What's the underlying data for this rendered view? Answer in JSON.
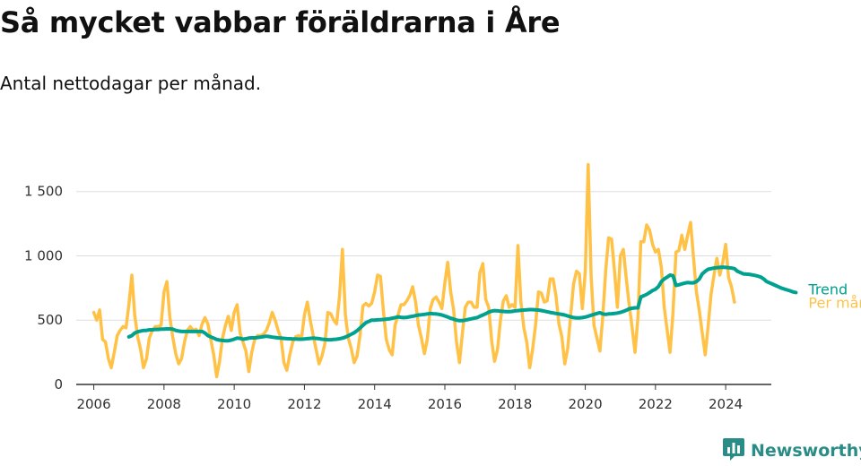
{
  "colors": {
    "monthly": "#FFC247",
    "trend": "#00A18E",
    "grid": "#DDDDDD",
    "brand": "#2A8C86"
  },
  "brand": {
    "name": "Newsworthy",
    "icon": "bar-chart-badge-icon"
  },
  "chart_data": {
    "type": "line",
    "title": "Så mycket vabbar föräldrarna i Åre",
    "subtitle": "Antal nettodagar per månad.",
    "xlabel": "",
    "ylabel": "",
    "xlim": [
      2005.5,
      2025.3
    ],
    "ylim": [
      0,
      1700
    ],
    "x_ticks": [
      2006,
      2008,
      2010,
      2012,
      2014,
      2016,
      2018,
      2020,
      2022,
      2024
    ],
    "x_tick_labels": [
      "2006",
      "2008",
      "2010",
      "2012",
      "2014",
      "2016",
      "2018",
      "2020",
      "2022",
      "2024"
    ],
    "y_ticks": [
      0,
      500,
      1000,
      1500
    ],
    "y_tick_labels": [
      "0",
      "500",
      "1 000",
      "1 500"
    ],
    "grid": true,
    "series": [
      {
        "name": "Per månad",
        "start_year": 2006,
        "start_month": 1,
        "values": [
          560,
          500,
          580,
          350,
          330,
          200,
          130,
          250,
          380,
          420,
          450,
          440,
          620,
          850,
          540,
          370,
          270,
          130,
          200,
          360,
          420,
          450,
          450,
          460,
          720,
          800,
          520,
          370,
          240,
          160,
          200,
          330,
          420,
          450,
          420,
          430,
          380,
          470,
          520,
          470,
          350,
          230,
          60,
          180,
          360,
          460,
          530,
          420,
          560,
          620,
          400,
          330,
          260,
          100,
          250,
          350,
          380,
          380,
          390,
          420,
          480,
          560,
          500,
          420,
          360,
          170,
          110,
          230,
          330,
          370,
          380,
          360,
          540,
          640,
          500,
          380,
          270,
          160,
          220,
          320,
          560,
          550,
          500,
          470,
          690,
          1050,
          540,
          360,
          280,
          170,
          220,
          380,
          610,
          630,
          610,
          630,
          720,
          850,
          840,
          570,
          350,
          270,
          230,
          460,
          540,
          620,
          620,
          650,
          690,
          760,
          640,
          460,
          360,
          240,
          350,
          590,
          660,
          680,
          640,
          590,
          790,
          950,
          720,
          580,
          330,
          170,
          400,
          600,
          640,
          640,
          600,
          600,
          870,
          940,
          660,
          600,
          340,
          180,
          270,
          500,
          650,
          690,
          600,
          620,
          600,
          1080,
          640,
          440,
          330,
          130,
          270,
          460,
          720,
          710,
          640,
          650,
          820,
          820,
          690,
          470,
          370,
          160,
          280,
          530,
          780,
          880,
          860,
          590,
          880,
          1710,
          840,
          460,
          360,
          260,
          530,
          890,
          1140,
          1130,
          880,
          600,
          1000,
          1050,
          830,
          620,
          450,
          250,
          520,
          1110,
          1110,
          1240,
          1200,
          1090,
          1030,
          1050,
          910,
          600,
          420,
          250,
          560,
          1030,
          1040,
          1160,
          1050,
          1160,
          1260,
          990,
          720,
          570,
          400,
          230,
          450,
          700,
          850,
          980,
          850,
          950,
          1090,
          830,
          760,
          640
        ],
        "label": "Per månad"
      },
      {
        "name": "Trend",
        "start_year": 2007,
        "start_month": 1,
        "values": [
          370,
          380,
          400,
          410,
          415,
          420,
          420,
          425,
          425,
          428,
          428,
          430,
          430,
          432,
          432,
          430,
          420,
          415,
          412,
          412,
          412,
          412,
          412,
          412,
          412,
          412,
          400,
          380,
          370,
          360,
          350,
          345,
          342,
          340,
          340,
          345,
          352,
          360,
          358,
          352,
          355,
          360,
          362,
          362,
          365,
          368,
          372,
          375,
          372,
          368,
          365,
          362,
          360,
          358,
          356,
          355,
          354,
          353,
          352,
          352,
          354,
          356,
          358,
          360,
          358,
          356,
          352,
          350,
          348,
          348,
          350,
          352,
          355,
          360,
          368,
          378,
          390,
          402,
          418,
          438,
          460,
          480,
          490,
          500,
          500,
          502,
          503,
          505,
          508,
          510,
          515,
          520,
          525,
          522,
          520,
          522,
          526,
          530,
          535,
          540,
          542,
          545,
          548,
          552,
          550,
          548,
          545,
          540,
          532,
          524,
          515,
          508,
          500,
          496,
          496,
          500,
          505,
          510,
          515,
          520,
          530,
          540,
          550,
          562,
          570,
          574,
          572,
          570,
          568,
          566,
          566,
          568,
          572,
          574,
          576,
          578,
          580,
          582,
          582,
          580,
          578,
          575,
          570,
          565,
          560,
          556,
          552,
          548,
          544,
          540,
          532,
          526,
          520,
          518,
          518,
          520,
          524,
          530,
          538,
          545,
          552,
          558,
          548,
          545,
          548,
          550,
          552,
          555,
          560,
          568,
          576,
          588,
          592,
          596,
          596,
          680,
          690,
          700,
          715,
          730,
          740,
          760,
          800,
          820,
          835,
          850,
          845,
          770,
          775,
          782,
          788,
          792,
          790,
          790,
          800,
          820,
          860,
          880,
          895,
          900,
          905,
          908,
          910,
          912,
          910,
          908,
          905,
          900,
          880,
          870,
          860,
          858,
          856,
          852,
          848,
          842,
          835,
          820,
          800,
          790,
          780,
          770,
          760,
          750,
          742,
          735,
          728,
          720,
          715
        ],
        "label": "Trend"
      }
    ]
  }
}
